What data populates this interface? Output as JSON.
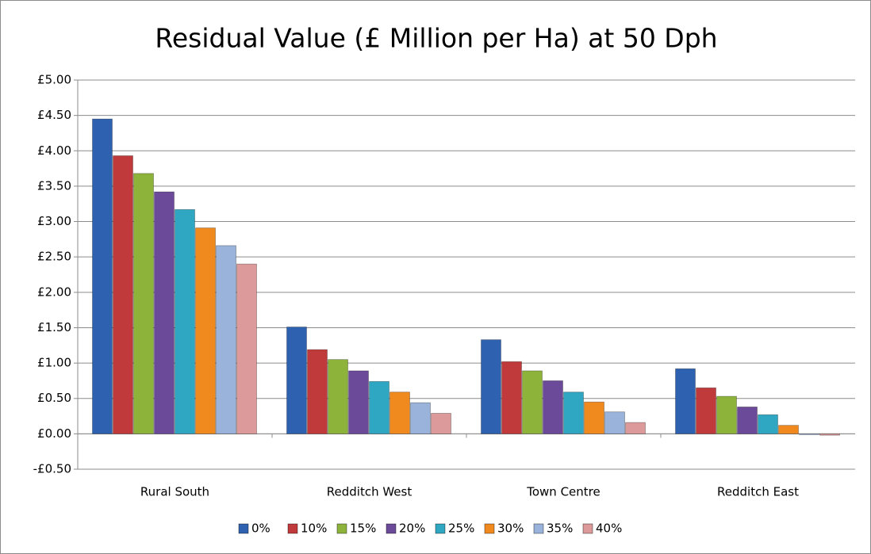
{
  "chart_data": {
    "type": "bar",
    "title": "Residual Value (£ Million per Ha) at 50 Dph",
    "categories": [
      "Rural South",
      "Redditch West",
      "Town Centre",
      "Redditch East"
    ],
    "series": [
      {
        "name": "0%",
        "color": "#2e62b0",
        "values": [
          4.45,
          1.51,
          1.33,
          0.92
        ]
      },
      {
        "name": "10%",
        "color": "#c0393b",
        "values": [
          3.93,
          1.19,
          1.02,
          0.65
        ]
      },
      {
        "name": "15%",
        "color": "#8db33a",
        "values": [
          3.68,
          1.05,
          0.89,
          0.53
        ]
      },
      {
        "name": "20%",
        "color": "#6b4a9a",
        "values": [
          3.42,
          0.89,
          0.75,
          0.38
        ]
      },
      {
        "name": "25%",
        "color": "#2fa6c2",
        "values": [
          3.17,
          0.74,
          0.59,
          0.27
        ]
      },
      {
        "name": "30%",
        "color": "#f08a1e",
        "values": [
          2.91,
          0.59,
          0.45,
          0.12
        ]
      },
      {
        "name": "35%",
        "color": "#9ab3da",
        "values": [
          2.66,
          0.44,
          0.31,
          0.0
        ]
      },
      {
        "name": "40%",
        "color": "#dd9a9a",
        "values": [
          2.4,
          0.29,
          0.16,
          -0.02
        ]
      }
    ],
    "ylim": [
      -0.5,
      5.0
    ],
    "yticks": [
      {
        "value": -0.5,
        "label": "-£0.50"
      },
      {
        "value": 0,
        "label": "£0.00"
      },
      {
        "value": 0.5,
        "label": "£0.50"
      },
      {
        "value": 1,
        "label": "£1.00"
      },
      {
        "value": 1.5,
        "label": "£1.50"
      },
      {
        "value": 2,
        "label": "£2.00"
      },
      {
        "value": 2.5,
        "label": "£2.50"
      },
      {
        "value": 3,
        "label": "£3.00"
      },
      {
        "value": 3.5,
        "label": "£3.50"
      },
      {
        "value": 4,
        "label": "£4.00"
      },
      {
        "value": 4.5,
        "label": "£4.50"
      },
      {
        "value": 5,
        "label": "£5.00"
      }
    ],
    "grid": true,
    "legend": "bottom"
  }
}
